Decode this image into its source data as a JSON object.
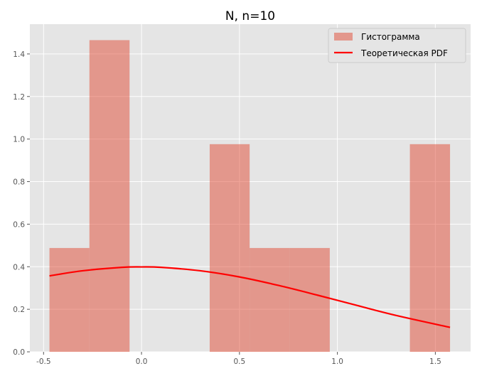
{
  "chart_data": {
    "type": "bar",
    "title": "N, n=10",
    "xlabel": "",
    "ylabel": "",
    "xlim": [
      -0.57,
      1.68
    ],
    "ylim": [
      0,
      1.54
    ],
    "xticks": [
      -0.5,
      0.0,
      0.5,
      1.0,
      1.5
    ],
    "xtick_labels": [
      "-0.5",
      "0.0",
      "0.5",
      "1.0",
      "1.5"
    ],
    "yticks": [
      0.0,
      0.2,
      0.4,
      0.6,
      0.8,
      1.0,
      1.2,
      1.4
    ],
    "ytick_labels": [
      "0.0",
      "0.2",
      "0.4",
      "0.6",
      "0.8",
      "1.0",
      "1.2",
      "1.4"
    ],
    "grid": true,
    "legend_position": "top-right",
    "series": [
      {
        "name": "Гистограмма",
        "kind": "histogram",
        "color": "#e24a33",
        "bins": [
          {
            "x0": -0.47,
            "x1": -0.266,
            "value": 0.488
          },
          {
            "x0": -0.266,
            "x1": -0.061,
            "value": 1.465
          },
          {
            "x0": -0.061,
            "x1": 0.143,
            "value": 0.0
          },
          {
            "x0": 0.143,
            "x1": 0.348,
            "value": 0.0
          },
          {
            "x0": 0.348,
            "x1": 0.552,
            "value": 0.976
          },
          {
            "x0": 0.552,
            "x1": 0.757,
            "value": 0.488
          },
          {
            "x0": 0.757,
            "x1": 0.961,
            "value": 0.488
          },
          {
            "x0": 0.961,
            "x1": 1.166,
            "value": 0.0
          },
          {
            "x0": 1.166,
            "x1": 1.37,
            "value": 0.0
          },
          {
            "x0": 1.37,
            "x1": 1.575,
            "value": 0.976
          }
        ]
      },
      {
        "name": "Теоретическая PDF",
        "kind": "line",
        "color": "#ff0000",
        "x": [
          -0.47,
          -0.3,
          -0.1,
          0.0,
          0.1,
          0.3,
          0.5,
          0.7,
          0.9,
          1.1,
          1.3,
          1.575
        ],
        "y": [
          0.357,
          0.381,
          0.397,
          0.399,
          0.397,
          0.381,
          0.352,
          0.312,
          0.266,
          0.218,
          0.171,
          0.115
        ]
      }
    ]
  },
  "colors": {
    "plot_background": "#e5e5e5",
    "grid": "#ffffff",
    "bar": "#e24a33",
    "line": "#ff0000"
  }
}
